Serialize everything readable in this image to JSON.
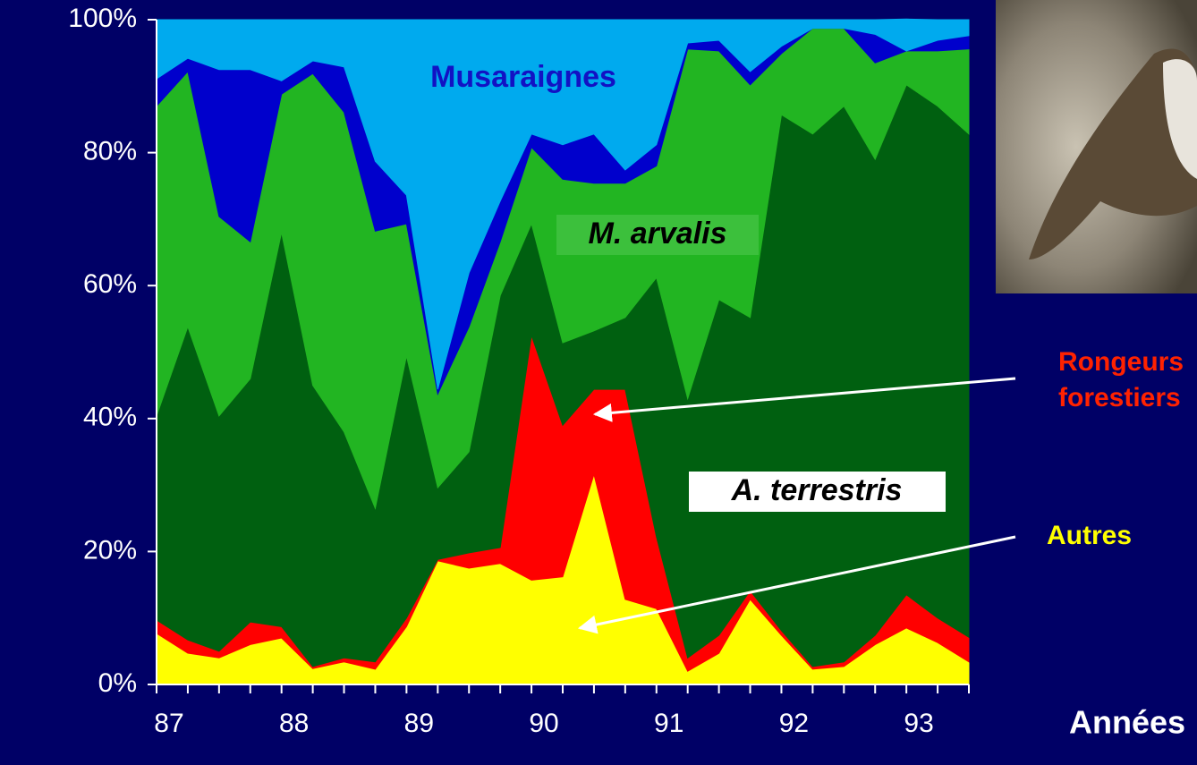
{
  "chart_data": {
    "type": "stacked_area",
    "x": [
      86.9,
      87.15,
      87.4,
      87.65,
      87.9,
      88.15,
      88.4,
      88.65,
      88.9,
      89.15,
      89.4,
      89.65,
      89.9,
      90.15,
      90.4,
      90.65,
      90.9,
      91.15,
      91.4,
      91.65,
      91.9,
      92.15,
      92.4,
      92.65,
      92.9,
      93.15,
      93.4
    ],
    "xlim": [
      86.9,
      93.4
    ],
    "xticks": [
      87,
      88,
      89,
      90,
      91,
      92,
      93
    ],
    "xlabel": "Années",
    "ylim": [
      0,
      100
    ],
    "yticks": [
      {
        "value": 0,
        "label": "0%"
      },
      {
        "value": 20,
        "label": "20%"
      },
      {
        "value": 40,
        "label": "40%"
      },
      {
        "value": 60,
        "label": "60%"
      },
      {
        "value": 80,
        "label": "80%"
      },
      {
        "value": 100,
        "label": "100%"
      }
    ],
    "grid": false,
    "series": [
      {
        "name": "Autres",
        "color": "#ffff00",
        "values": [
          7.7,
          4.7,
          4.0,
          6.0,
          7.0,
          2.4,
          3.4,
          2.3,
          8.7,
          18.6,
          17.5,
          18.2,
          15.7,
          16.2,
          31.6,
          12.8,
          11.4,
          2.0,
          4.7,
          12.8,
          7.4,
          2.3,
          2.7,
          6.0,
          8.5,
          6.3,
          3.4
        ]
      },
      {
        "name": "Rongeurs forestiers",
        "color": "#ff0000",
        "values": [
          2.0,
          2.0,
          1.0,
          3.4,
          1.7,
          0.3,
          0.6,
          1.1,
          1.3,
          0.2,
          2.3,
          2.4,
          36.8,
          22.8,
          12.8,
          31.6,
          10.8,
          2.0,
          2.7,
          1.3,
          0.7,
          0.4,
          0.7,
          1.4,
          5.0,
          3.7,
          3.7
        ]
      },
      {
        "name": "A. terrestris",
        "color": "#006010",
        "values": [
          30.7,
          47.1,
          35.4,
          36.6,
          59.3,
          42.3,
          34.0,
          23.1,
          39.4,
          10.8,
          15.2,
          37.9,
          16.8,
          12.4,
          8.8,
          10.8,
          39.0,
          39.0,
          50.5,
          41.1,
          77.6,
          80.1,
          83.6,
          71.6,
          76.7,
          77.0,
          75.7
        ]
      },
      {
        "name": "M. arvalis",
        "color": "#22b522",
        "values": [
          46.6,
          38.4,
          30.0,
          20.6,
          20.8,
          46.9,
          48.1,
          41.7,
          19.9,
          14.1,
          18.8,
          8.1,
          11.5,
          24.6,
          22.2,
          20.2,
          16.8,
          52.6,
          37.4,
          35.0,
          9.2,
          15.9,
          11.7,
          14.5,
          5.1,
          8.3,
          12.8
        ]
      },
      {
        "color": "#0000cc",
        "values": [
          4.1,
          2.0,
          22.1,
          25.9,
          2.0,
          1.9,
          6.8,
          10.5,
          4.3,
          0.7,
          8.1,
          6.1,
          2.0,
          5.2,
          7.4,
          2.0,
          3.2,
          0.9,
          1.6,
          2.0,
          1.1,
          0,
          0,
          4.3,
          0,
          1.6,
          2.0
        ]
      },
      {
        "name": "Musaraignes",
        "color": "#00aaee",
        "values": [
          8.9,
          5.8,
          7.5,
          7.5,
          9.2,
          6.2,
          7.1,
          21.3,
          26.4,
          55.6,
          38.1,
          27.3,
          17.2,
          18.8,
          17.2,
          22.6,
          18.8,
          3.5,
          3.1,
          7.8,
          4.0,
          1.3,
          1.3,
          2.2,
          4.8,
          3.1,
          2.4
        ]
      }
    ]
  }
}
